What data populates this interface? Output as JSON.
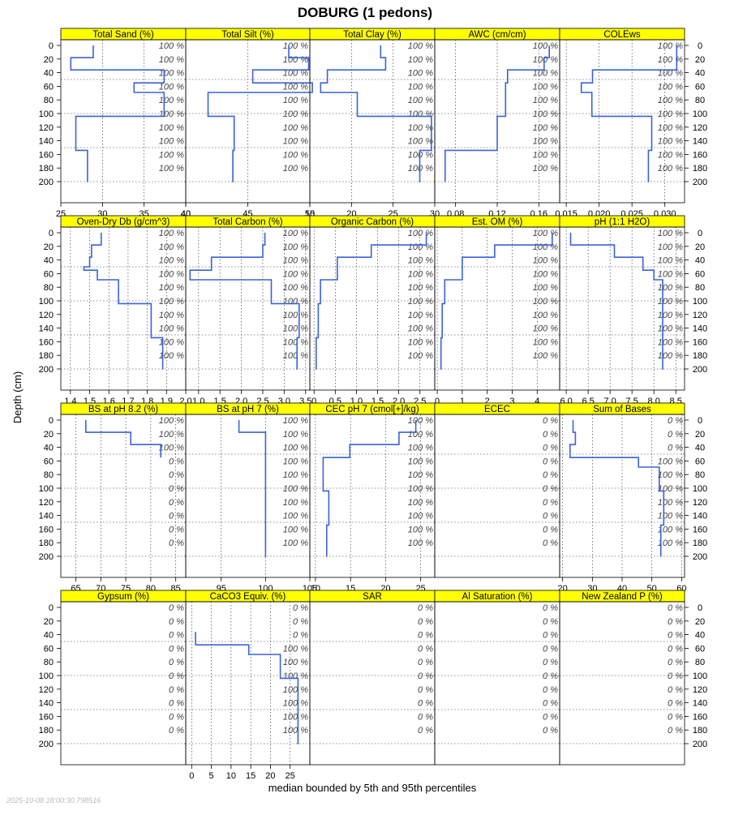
{
  "chart_data": {
    "type": "line",
    "title": "DOBURG (1 pedons)",
    "ylabel": "Depth (cm)",
    "xlabel": "median bounded by 5th and 95th percentiles",
    "timestamp": "2025-10-08 18:00:30.798516",
    "depth_range": [
      0,
      200
    ],
    "depth_ticks": [
      0,
      20,
      40,
      60,
      80,
      100,
      120,
      140,
      160,
      180,
      200
    ],
    "pct_depths": [
      0,
      20,
      40,
      60,
      80,
      100,
      120,
      140,
      160,
      180
    ],
    "strip_color": "#ffff00",
    "line_color": "#3a63d8",
    "grid": "dotted",
    "panels": [
      {
        "name": "Total Sand (%)",
        "xlim": [
          25,
          40
        ],
        "xticks": [
          "25",
          "30",
          "35",
          "40"
        ],
        "pct_labels": [
          "100 %",
          "100 %",
          "100 %",
          "100 %",
          "100 %",
          "100 %",
          "100 %",
          "100 %",
          "100 %",
          "100 %"
        ],
        "profile": [
          [
            0,
            28.9
          ],
          [
            18,
            28.9
          ],
          [
            18,
            26.2
          ],
          [
            36,
            26.2
          ],
          [
            36,
            37.4
          ],
          [
            55,
            37.4
          ],
          [
            55,
            33.8
          ],
          [
            69,
            33.8
          ],
          [
            69,
            37.4
          ],
          [
            104,
            37.4
          ],
          [
            104,
            26.8
          ],
          [
            154,
            26.8
          ],
          [
            154,
            28.2
          ],
          [
            201,
            28.2
          ]
        ]
      },
      {
        "name": "Total Silt (%)",
        "xlim": [
          40,
          50
        ],
        "xticks": [
          "40",
          "45",
          "50"
        ],
        "pct_labels": [
          "100 %",
          "100 %",
          "100 %",
          "100 %",
          "100 %",
          "100 %",
          "100 %",
          "100 %",
          "100 %",
          "100 %"
        ],
        "profile": [
          [
            0,
            48.3
          ],
          [
            18,
            48.3
          ],
          [
            18,
            49.9
          ],
          [
            36,
            49.9
          ],
          [
            36,
            45.4
          ],
          [
            55,
            45.4
          ],
          [
            55,
            50.2
          ],
          [
            69,
            50.2
          ],
          [
            69,
            41.8
          ],
          [
            104,
            41.8
          ],
          [
            104,
            43.9
          ],
          [
            154,
            43.9
          ],
          [
            154,
            43.8
          ],
          [
            201,
            43.8
          ]
        ]
      },
      {
        "name": "Total Clay (%)",
        "xlim": [
          15,
          30
        ],
        "xticks": [
          "15",
          "20",
          "25",
          "30"
        ],
        "pct_labels": [
          "100 %",
          "100 %",
          "100 %",
          "100 %",
          "100 %",
          "100 %",
          "100 %",
          "100 %",
          "100 %",
          "100 %"
        ],
        "profile": [
          [
            0,
            23.5
          ],
          [
            18,
            23.5
          ],
          [
            18,
            24.1
          ],
          [
            36,
            24.1
          ],
          [
            36,
            17.1
          ],
          [
            55,
            17.1
          ],
          [
            55,
            16.3
          ],
          [
            69,
            16.3
          ],
          [
            69,
            20.7
          ],
          [
            104,
            20.7
          ],
          [
            104,
            29.6
          ],
          [
            154,
            29.6
          ],
          [
            154,
            28.2
          ],
          [
            201,
            28.2
          ]
        ]
      },
      {
        "name": "AWC (cm/cm)",
        "xlim": [
          0.06,
          0.18
        ],
        "xticks": [
          "0.08",
          "0.12",
          "0.16"
        ],
        "pct_labels": [
          "100 %",
          "100 %",
          "100 %",
          "100 %",
          "100 %",
          "100 %",
          "100 %",
          "100 %",
          "100 %",
          "100 %"
        ],
        "profile": [
          [
            0,
            0.17
          ],
          [
            18,
            0.17
          ],
          [
            18,
            0.165
          ],
          [
            36,
            0.165
          ],
          [
            36,
            0.13
          ],
          [
            55,
            0.13
          ],
          [
            55,
            0.128
          ],
          [
            104,
            0.128
          ],
          [
            104,
            0.12
          ],
          [
            154,
            0.12
          ],
          [
            154,
            0.07
          ],
          [
            201,
            0.07
          ]
        ]
      },
      {
        "name": "COLEws",
        "xlim": [
          0.014,
          0.033
        ],
        "xticks": [
          "0.015",
          "0.020",
          "0.025",
          "0.030"
        ],
        "pct_labels": [
          "100 %",
          "100 %",
          "100 %",
          "100 %",
          "100 %",
          "100 %",
          "100 %",
          "100 %",
          "100 %",
          "100 %"
        ],
        "profile": [
          [
            0,
            0.0318
          ],
          [
            36,
            0.0318
          ],
          [
            36,
            0.019
          ],
          [
            55,
            0.019
          ],
          [
            55,
            0.0173
          ],
          [
            69,
            0.0173
          ],
          [
            69,
            0.0189
          ],
          [
            104,
            0.0189
          ],
          [
            104,
            0.028
          ],
          [
            154,
            0.028
          ],
          [
            154,
            0.0275
          ],
          [
            201,
            0.0275
          ]
        ]
      },
      {
        "name": "Oven-Dry Db (g/cm^3)",
        "xlim": [
          1.35,
          2.0
        ],
        "xticks": [
          "1.4",
          "1.5",
          "1.6",
          "1.7",
          "1.8",
          "1.9",
          "2.0"
        ],
        "pct_labels": [
          "100 %",
          "100 %",
          "100 %",
          "100 %",
          "100 %",
          "100 %",
          "100 %",
          "100 %",
          "100 %",
          "100 %"
        ],
        "profile": [
          [
            0,
            1.56
          ],
          [
            18,
            1.56
          ],
          [
            18,
            1.51
          ],
          [
            36,
            1.51
          ],
          [
            36,
            1.5
          ],
          [
            50,
            1.5
          ],
          [
            50,
            1.47
          ],
          [
            55,
            1.47
          ],
          [
            55,
            1.54
          ],
          [
            69,
            1.54
          ],
          [
            69,
            1.65
          ],
          [
            104,
            1.65
          ],
          [
            104,
            1.82
          ],
          [
            154,
            1.82
          ],
          [
            154,
            1.88
          ],
          [
            201,
            1.88
          ]
        ]
      },
      {
        "name": "Total Carbon (%)",
        "xlim": [
          0.7,
          3.6
        ],
        "xticks": [
          "1.0",
          "1.5",
          "2.0",
          "2.5",
          "3.0",
          "3.5"
        ],
        "pct_labels": [
          "100 %",
          "100 %",
          "100 %",
          "100 %",
          "100 %",
          "100 %",
          "100 %",
          "100 %",
          "100 %",
          "100 %"
        ],
        "profile": [
          [
            0,
            2.55
          ],
          [
            18,
            2.55
          ],
          [
            18,
            2.5
          ],
          [
            36,
            2.5
          ],
          [
            36,
            1.3
          ],
          [
            55,
            1.3
          ],
          [
            55,
            0.8
          ],
          [
            69,
            0.8
          ],
          [
            69,
            2.7
          ],
          [
            104,
            2.7
          ],
          [
            104,
            3.35
          ],
          [
            154,
            3.35
          ],
          [
            154,
            3.3
          ],
          [
            201,
            3.3
          ]
        ]
      },
      {
        "name": "Organic Carbon (%)",
        "xlim": [
          -0.1,
          2.85
        ],
        "xticks": [
          "0",
          "0.5",
          "1.0",
          "1.5",
          "2.0",
          "2.5"
        ],
        "pct_labels": [
          "100 %",
          "100 %",
          "100 %",
          "100 %",
          "100 %",
          "100 %",
          "100 %",
          "100 %",
          "100 %",
          "100 %"
        ],
        "profile": [
          [
            0,
            2.65
          ],
          [
            18,
            2.65
          ],
          [
            18,
            1.35
          ],
          [
            36,
            1.35
          ],
          [
            36,
            0.55
          ],
          [
            69,
            0.55
          ],
          [
            69,
            0.15
          ],
          [
            104,
            0.15
          ],
          [
            104,
            0.1
          ],
          [
            154,
            0.1
          ],
          [
            154,
            0.05
          ],
          [
            201,
            0.05
          ]
        ]
      },
      {
        "name": "Est. OM (%)",
        "xlim": [
          -0.1,
          4.9
        ],
        "xticks": [
          "0",
          "1",
          "2",
          "3",
          "4"
        ],
        "pct_labels": [
          "100 %",
          "100 %",
          "100 %",
          "100 %",
          "100 %",
          "100 %",
          "100 %",
          "100 %",
          "100 %",
          "100 %"
        ],
        "profile": [
          [
            0,
            4.6
          ],
          [
            18,
            4.6
          ],
          [
            18,
            2.3
          ],
          [
            36,
            2.3
          ],
          [
            36,
            1.0
          ],
          [
            69,
            1.0
          ],
          [
            69,
            0.3
          ],
          [
            104,
            0.3
          ],
          [
            104,
            0.2
          ],
          [
            154,
            0.2
          ],
          [
            154,
            0.15
          ],
          [
            201,
            0.15
          ]
        ]
      },
      {
        "name": "pH (1:1 H2O)",
        "xlim": [
          5.85,
          8.7
        ],
        "xticks": [
          "6.0",
          "6.5",
          "7.0",
          "7.5",
          "8.0",
          "8.5"
        ],
        "pct_labels": [
          "100 %",
          "100 %",
          "100 %",
          "100 %",
          "100 %",
          "100 %",
          "100 %",
          "100 %",
          "100 %",
          "100 %"
        ],
        "profile": [
          [
            0,
            6.1
          ],
          [
            18,
            6.1
          ],
          [
            18,
            7.1
          ],
          [
            36,
            7.1
          ],
          [
            36,
            7.75
          ],
          [
            55,
            7.75
          ],
          [
            55,
            8.0
          ],
          [
            69,
            8.0
          ],
          [
            69,
            8.2
          ],
          [
            201,
            8.2
          ]
        ]
      },
      {
        "name": "BS at pH 8.2 (%)",
        "xlim": [
          62,
          87
        ],
        "xticks": [
          "65",
          "70",
          "75",
          "80",
          "85"
        ],
        "pct_labels": [
          "100 %",
          "100 %",
          "100 %",
          "0 %",
          "0 %",
          "0 %",
          "0 %",
          "0 %",
          "0 %",
          "0 %"
        ],
        "profile": [
          [
            0,
            67
          ],
          [
            18,
            67
          ],
          [
            18,
            76
          ],
          [
            36,
            76
          ],
          [
            36,
            82
          ],
          [
            55,
            82
          ]
        ]
      },
      {
        "name": "BS at pH 7 (%)",
        "xlim": [
          91,
          105
        ],
        "xticks": [
          "95",
          "100",
          "105"
        ],
        "pct_labels": [
          "100 %",
          "100 %",
          "100 %",
          "100 %",
          "100 %",
          "100 %",
          "100 %",
          "100 %",
          "100 %",
          "100 %"
        ],
        "profile": [
          [
            0,
            97
          ],
          [
            18,
            97
          ],
          [
            18,
            100
          ],
          [
            201,
            100
          ]
        ]
      },
      {
        "name": "CEC pH 7 (cmol[+]/kg)",
        "xlim": [
          9.2,
          27
        ],
        "xticks": [
          "10",
          "15",
          "20",
          "25"
        ],
        "pct_labels": [
          "100 %",
          "100 %",
          "100 %",
          "100 %",
          "100 %",
          "100 %",
          "100 %",
          "100 %",
          "100 %",
          "100 %"
        ],
        "profile": [
          [
            0,
            24.3
          ],
          [
            18,
            24.3
          ],
          [
            18,
            21.9
          ],
          [
            36,
            21.9
          ],
          [
            36,
            14.9
          ],
          [
            55,
            14.9
          ],
          [
            55,
            11.1
          ],
          [
            104,
            11.1
          ],
          [
            104,
            11.9
          ],
          [
            154,
            11.9
          ],
          [
            154,
            11.6
          ],
          [
            201,
            11.6
          ]
        ]
      },
      {
        "name": "ECEC",
        "xlim": [
          0,
          1
        ],
        "xticks": [],
        "pct_labels": [
          "0 %",
          "0 %",
          "0 %",
          "0 %",
          "0 %",
          "0 %",
          "0 %",
          "0 %",
          "0 %",
          "0 %"
        ],
        "profile": []
      },
      {
        "name": "Sum of Bases",
        "xlim": [
          19,
          61
        ],
        "xticks": [
          "20",
          "30",
          "40",
          "50",
          "60"
        ],
        "pct_labels": [
          "0 %",
          "0 %",
          "0 %",
          "100 %",
          "100 %",
          "100 %",
          "100 %",
          "100 %",
          "100 %",
          "100 %"
        ],
        "profile": [
          [
            0,
            23.5
          ],
          [
            18,
            23.5
          ],
          [
            18,
            24.3
          ],
          [
            36,
            24.3
          ],
          [
            36,
            22.5
          ],
          [
            55,
            22.5
          ],
          [
            55,
            45.5
          ],
          [
            69,
            45.5
          ],
          [
            69,
            52.5
          ],
          [
            104,
            52.5
          ],
          [
            104,
            54
          ],
          [
            154,
            54
          ],
          [
            154,
            53
          ],
          [
            201,
            53
          ]
        ]
      },
      {
        "name": "Gypsum (%)",
        "xlim": [
          0,
          1
        ],
        "xticks": [],
        "pct_labels": [
          "0 %",
          "0 %",
          "0 %",
          "0 %",
          "0 %",
          "0 %",
          "0 %",
          "0 %",
          "0 %",
          "0 %"
        ],
        "profile": []
      },
      {
        "name": "CaCO3 Equiv. (%)",
        "xlim": [
          -1.5,
          30
        ],
        "xticks": [
          "0",
          "5",
          "10",
          "15",
          "20",
          "25"
        ],
        "pct_labels": [
          "0 %",
          "0 %",
          "0 %",
          "100 %",
          "100 %",
          "100 %",
          "100 %",
          "100 %",
          "100 %",
          "100 %"
        ],
        "profile": [
          [
            36,
            1
          ],
          [
            55,
            1
          ],
          [
            55,
            14.5
          ],
          [
            69,
            14.5
          ],
          [
            69,
            22.5
          ],
          [
            104,
            22.5
          ],
          [
            104,
            27
          ],
          [
            201,
            27
          ]
        ]
      },
      {
        "name": "SAR",
        "xlim": [
          0,
          1
        ],
        "xticks": [],
        "pct_labels": [
          "0 %",
          "0 %",
          "0 %",
          "0 %",
          "0 %",
          "0 %",
          "0 %",
          "0 %",
          "0 %",
          "0 %"
        ],
        "profile": []
      },
      {
        "name": "Al Saturation (%)",
        "xlim": [
          0,
          1
        ],
        "xticks": [],
        "pct_labels": [
          "0 %",
          "0 %",
          "0 %",
          "0 %",
          "0 %",
          "0 %",
          "0 %",
          "0 %",
          "0 %",
          "0 %"
        ],
        "profile": []
      },
      {
        "name": "New Zealand P (%)",
        "xlim": [
          0,
          1
        ],
        "xticks": [],
        "pct_labels": [
          "0 %",
          "0 %",
          "0 %",
          "0 %",
          "0 %",
          "0 %",
          "0 %",
          "0 %",
          "0 %",
          "0 %"
        ],
        "profile": []
      }
    ]
  }
}
